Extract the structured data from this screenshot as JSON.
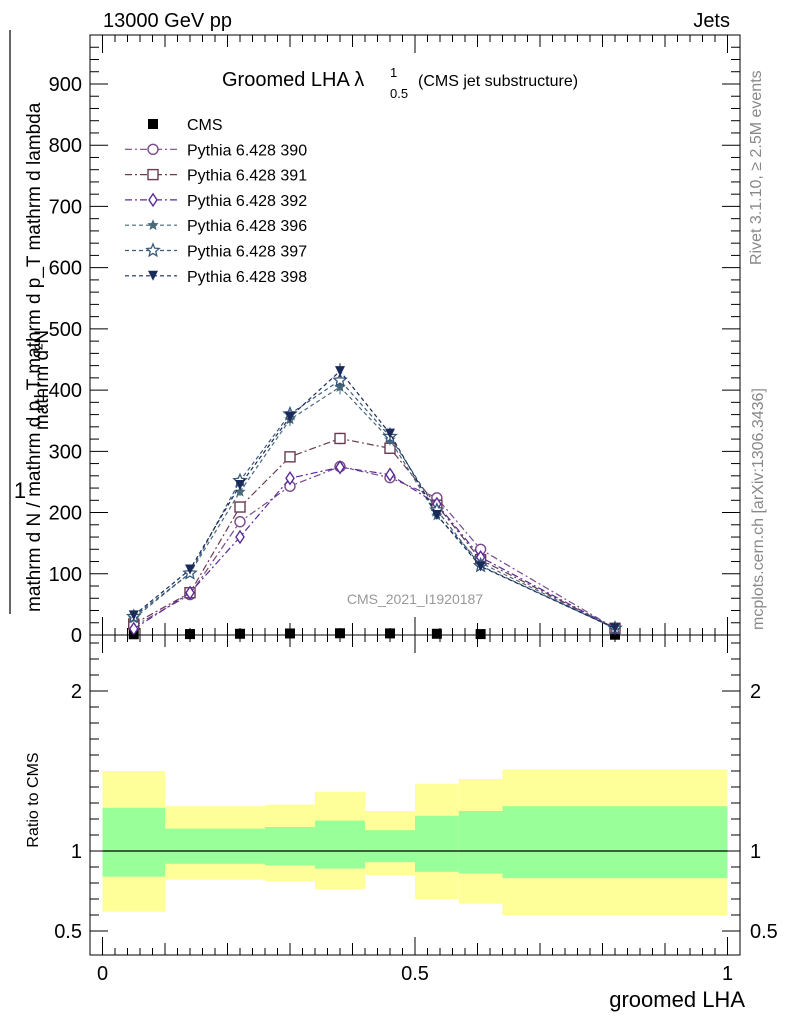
{
  "header": {
    "left": "13000 GeV pp",
    "right": "Jets"
  },
  "side_notes": {
    "rivet": "Rivet 3.1.10, ≥ 2.5M events",
    "mcplots": "mcplots.cern.ch [arXiv:1306.3436]"
  },
  "watermark": "CMS_2021_I1920187",
  "chart_data": [
    {
      "type": "line",
      "title": "Groomed LHA λ",
      "title_sup": "1",
      "title_sub": "0.5",
      "title_suffix": "(CMS jet substructure)",
      "ylabel_num": "mathrm d²N",
      "ylabel_den": "mathrm d N / mathrm d p_T mathrm d p_T mathrm d lambda",
      "ylabel_one": "1",
      "ylim": [
        0,
        980
      ],
      "yticks": [
        0,
        100,
        200,
        300,
        400,
        500,
        600,
        700,
        800,
        900
      ],
      "xlim": [
        -0.02,
        1.02
      ],
      "legend_position": "top-left",
      "x": [
        0.05,
        0.14,
        0.22,
        0.3,
        0.38,
        0.46,
        0.535,
        0.605,
        0.82
      ],
      "series": [
        {
          "name": "CMS",
          "color": "#000000",
          "marker": "square-filled",
          "values": [
            1.2,
            1.5,
            2.0,
            2.5,
            2.8,
            2.6,
            2.0,
            1.5,
            0.5
          ]
        },
        {
          "name": "Pythia 6.428 390",
          "color": "#7a4a8a",
          "marker": "circle-open",
          "dash": "7,3,2,3",
          "values": [
            14,
            66,
            185,
            243,
            275,
            257,
            224,
            140,
            11
          ]
        },
        {
          "name": "Pythia 6.428 391",
          "color": "#6a3a50",
          "marker": "square-open",
          "dash": "7,3,2,3",
          "values": [
            18,
            69,
            209,
            291,
            321,
            305,
            212,
            123,
            11
          ]
        },
        {
          "name": "Pythia 6.428 392",
          "color": "#5a2a9a",
          "marker": "diamond-open",
          "dash": "7,3,2,3",
          "values": [
            10,
            69,
            160,
            256,
            274,
            262,
            214,
            127,
            11
          ]
        },
        {
          "name": "Pythia 6.428 396",
          "color": "#4a6a7a",
          "marker": "star-filled",
          "dash": "4,3",
          "values": [
            27,
            101,
            234,
            352,
            405,
            319,
            195,
            118,
            11
          ]
        },
        {
          "name": "Pythia 6.428 397",
          "color": "#3a5a7a",
          "marker": "star-open",
          "dash": "4,3",
          "values": [
            30,
            101,
            252,
            361,
            416,
            324,
            204,
            113,
            11
          ]
        },
        {
          "name": "Pythia 6.428 398",
          "color": "#1a2a5a",
          "marker": "triangle-down-filled",
          "dash": "4,3",
          "values": [
            32,
            107,
            245,
            356,
            431,
            329,
            196,
            112,
            11
          ]
        }
      ]
    },
    {
      "type": "area",
      "ylabel": "Ratio to CMS",
      "xlabel": "groomed LHA",
      "ylim": [
        0.35,
        2.35
      ],
      "yticks": [
        0.5,
        1,
        2
      ],
      "ytick_labels": [
        "0.5",
        "1",
        "2"
      ],
      "xlim": [
        -0.02,
        1.02
      ],
      "xticks": [
        0,
        0.5,
        1
      ],
      "xtick_labels": [
        "0",
        "0.5",
        "1"
      ],
      "reference_line": 1,
      "bands": {
        "outer_color": "#ffff99",
        "inner_color": "#99ff99",
        "bins": [
          {
            "x": [
              0.0,
              0.1
            ],
            "outer": [
              0.62,
              1.5
            ],
            "inner": [
              0.84,
              1.27
            ]
          },
          {
            "x": [
              0.1,
              0.26
            ],
            "outer": [
              0.82,
              1.28
            ],
            "inner": [
              0.92,
              1.14
            ]
          },
          {
            "x": [
              0.26,
              0.34
            ],
            "outer": [
              0.81,
              1.29
            ],
            "inner": [
              0.91,
              1.15
            ]
          },
          {
            "x": [
              0.34,
              0.42
            ],
            "outer": [
              0.76,
              1.37
            ],
            "inner": [
              0.89,
              1.19
            ]
          },
          {
            "x": [
              0.42,
              0.5
            ],
            "outer": [
              0.85,
              1.25
            ],
            "inner": [
              0.93,
              1.13
            ]
          },
          {
            "x": [
              0.5,
              0.57
            ],
            "outer": [
              0.7,
              1.42
            ],
            "inner": [
              0.87,
              1.22
            ]
          },
          {
            "x": [
              0.57,
              0.64
            ],
            "outer": [
              0.67,
              1.45
            ],
            "inner": [
              0.86,
              1.25
            ]
          },
          {
            "x": [
              0.64,
              1.0
            ],
            "outer": [
              0.6,
              1.51
            ],
            "inner": [
              0.83,
              1.28
            ]
          }
        ]
      }
    }
  ]
}
